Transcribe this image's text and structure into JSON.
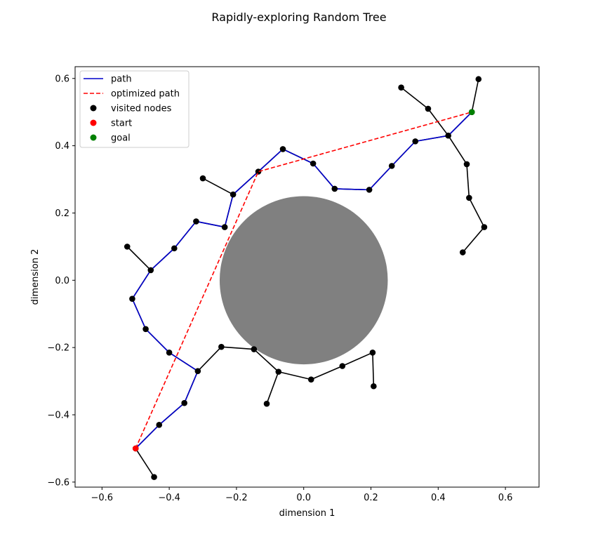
{
  "chart_data": {
    "type": "scatter",
    "title": "Rapidly-exploring Random Tree",
    "xlabel": "dimension 1",
    "ylabel": "dimension 2",
    "xlim": [
      -0.68,
      0.7
    ],
    "ylim": [
      -0.615,
      0.635
    ],
    "xticks": [
      -0.6,
      -0.4,
      -0.2,
      0.0,
      0.2,
      0.4,
      0.6
    ],
    "yticks": [
      -0.6,
      -0.4,
      -0.2,
      0.0,
      0.2,
      0.4,
      0.6
    ],
    "xtick_labels": [
      "−0.6",
      "−0.4",
      "−0.2",
      "0.0",
      "0.2",
      "0.4",
      "0.6"
    ],
    "ytick_labels": [
      "−0.6",
      "−0.4",
      "−0.2",
      "0.0",
      "0.2",
      "0.4",
      "0.6"
    ],
    "grid": false,
    "legend_position": "top-left",
    "obstacle": {
      "type": "circle",
      "center": [
        0.0,
        0.0
      ],
      "radius": 0.25,
      "color": "#808080"
    },
    "tree": {
      "color": "#000000",
      "nodes": [
        [
          -0.5,
          -0.5
        ],
        [
          -0.445,
          -0.585
        ],
        [
          -0.43,
          -0.43
        ],
        [
          -0.355,
          -0.365
        ],
        [
          -0.315,
          -0.27
        ],
        [
          -0.4,
          -0.215
        ],
        [
          -0.47,
          -0.145
        ],
        [
          -0.51,
          -0.055
        ],
        [
          -0.455,
          0.03
        ],
        [
          -0.525,
          0.1
        ],
        [
          -0.385,
          0.095
        ],
        [
          -0.32,
          0.175
        ],
        [
          -0.235,
          0.158
        ],
        [
          -0.21,
          0.255
        ],
        [
          -0.3,
          0.303
        ],
        [
          -0.135,
          0.323
        ],
        [
          -0.062,
          0.39
        ],
        [
          0.028,
          0.347
        ],
        [
          0.092,
          0.272
        ],
        [
          0.195,
          0.269
        ],
        [
          0.262,
          0.34
        ],
        [
          0.332,
          0.413
        ],
        [
          0.43,
          0.43
        ],
        [
          0.5,
          0.5
        ],
        [
          0.37,
          0.51
        ],
        [
          0.29,
          0.573
        ],
        [
          0.52,
          0.598
        ],
        [
          0.485,
          0.345
        ],
        [
          0.492,
          0.245
        ],
        [
          0.537,
          0.158
        ],
        [
          0.473,
          0.083
        ],
        [
          -0.245,
          -0.198
        ],
        [
          -0.148,
          -0.205
        ],
        [
          -0.075,
          -0.272
        ],
        [
          0.022,
          -0.295
        ],
        [
          0.115,
          -0.255
        ],
        [
          0.205,
          -0.215
        ],
        [
          0.208,
          -0.315
        ],
        [
          -0.11,
          -0.367
        ]
      ],
      "edges": [
        [
          0,
          1
        ],
        [
          0,
          2
        ],
        [
          2,
          3
        ],
        [
          3,
          4
        ],
        [
          4,
          5
        ],
        [
          5,
          6
        ],
        [
          6,
          7
        ],
        [
          7,
          8
        ],
        [
          8,
          9
        ],
        [
          8,
          10
        ],
        [
          10,
          11
        ],
        [
          11,
          12
        ],
        [
          12,
          13
        ],
        [
          13,
          14
        ],
        [
          13,
          15
        ],
        [
          15,
          16
        ],
        [
          16,
          17
        ],
        [
          17,
          18
        ],
        [
          18,
          19
        ],
        [
          19,
          20
        ],
        [
          20,
          21
        ],
        [
          21,
          22
        ],
        [
          22,
          23
        ],
        [
          22,
          24
        ],
        [
          24,
          25
        ],
        [
          23,
          26
        ],
        [
          22,
          27
        ],
        [
          27,
          28
        ],
        [
          28,
          29
        ],
        [
          29,
          30
        ],
        [
          4,
          31
        ],
        [
          31,
          32
        ],
        [
          32,
          33
        ],
        [
          33,
          34
        ],
        [
          34,
          35
        ],
        [
          35,
          36
        ],
        [
          36,
          37
        ],
        [
          33,
          38
        ]
      ]
    },
    "series": [
      {
        "name": "path",
        "type": "line",
        "color": "#0000cc",
        "style": "solid",
        "x": [
          -0.5,
          -0.43,
          -0.355,
          -0.315,
          -0.4,
          -0.47,
          -0.51,
          -0.455,
          -0.385,
          -0.32,
          -0.235,
          -0.21,
          -0.135,
          -0.062,
          0.028,
          0.092,
          0.195,
          0.262,
          0.332,
          0.43,
          0.5
        ],
        "y": [
          -0.5,
          -0.43,
          -0.365,
          -0.27,
          -0.215,
          -0.145,
          -0.055,
          0.03,
          0.095,
          0.175,
          0.158,
          0.255,
          0.323,
          0.39,
          0.347,
          0.272,
          0.269,
          0.34,
          0.413,
          0.43,
          0.5
        ]
      },
      {
        "name": "optimized path",
        "type": "line",
        "color": "#ff0000",
        "style": "dashed",
        "x": [
          -0.5,
          -0.135,
          0.5
        ],
        "y": [
          -0.5,
          0.323,
          0.5
        ]
      },
      {
        "name": "visited nodes",
        "type": "scatter",
        "color": "#000000"
      },
      {
        "name": "start",
        "type": "scatter",
        "color": "#ff0000",
        "x": [
          -0.5
        ],
        "y": [
          -0.5
        ]
      },
      {
        "name": "goal",
        "type": "scatter",
        "color": "#008000",
        "x": [
          0.5
        ],
        "y": [
          0.5
        ]
      }
    ]
  }
}
